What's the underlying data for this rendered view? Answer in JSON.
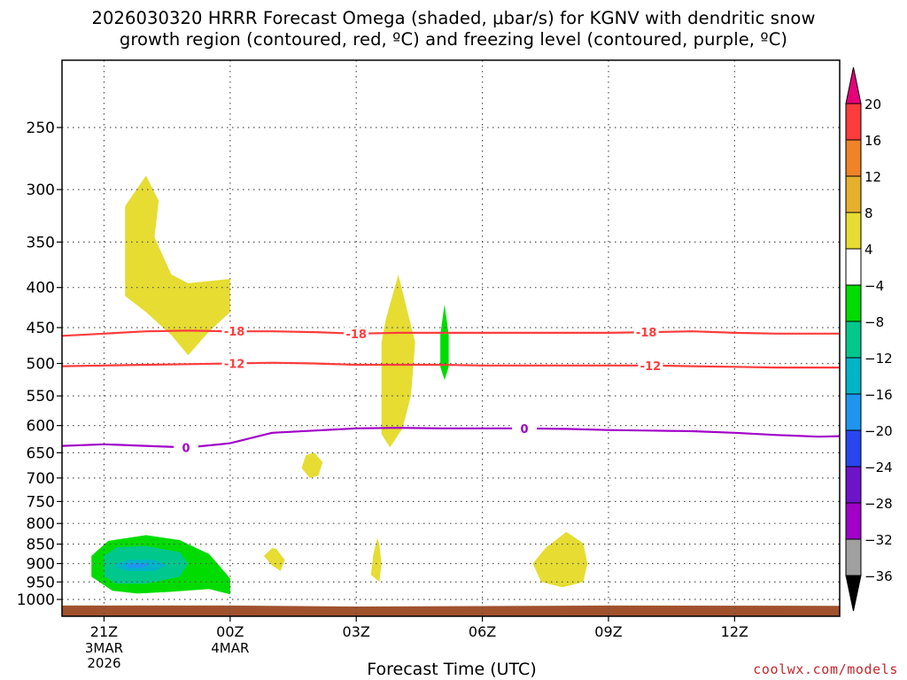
{
  "title": {
    "line1": "2026030320 HRRR Forecast Omega (shaded, μbar/s) for KGNV with dendritic snow",
    "line2": "growth region (contoured, red, ºC) and freezing level (contoured, purple, ºC)"
  },
  "credit": "coolwx.com/models",
  "chart_data": {
    "type": "heatmap",
    "xlabel": "Forecast Time (UTC)",
    "x_ticks": [
      {
        "label": "21Z",
        "sub": [
          "3MAR",
          "2026"
        ],
        "hours": 0
      },
      {
        "label": "00Z",
        "sub": [
          "4MAR"
        ],
        "hours": 3
      },
      {
        "label": "03Z",
        "sub": [],
        "hours": 6
      },
      {
        "label": "06Z",
        "sub": [],
        "hours": 9
      },
      {
        "label": "09Z",
        "sub": [],
        "hours": 12
      },
      {
        "label": "12Z",
        "sub": [],
        "hours": 15
      }
    ],
    "xlim_hours": [
      -1,
      17.5
    ],
    "y_ticks": [
      250,
      300,
      350,
      400,
      450,
      500,
      550,
      600,
      650,
      700,
      750,
      800,
      850,
      900,
      950,
      1000
    ],
    "y_scale": "log",
    "ylim_hpa": [
      200,
      1035
    ],
    "grid": true,
    "colorbar": {
      "labels": [
        "20",
        "16",
        "12",
        "8",
        "4",
        "−4",
        "−8",
        "−12",
        "−16",
        "−20",
        "−24",
        "−28",
        "−32",
        "−36"
      ],
      "segments": [
        {
          "from": 16,
          "to": 20,
          "color": "#ff3c3c"
        },
        {
          "from": 12,
          "to": 16,
          "color": "#f08228"
        },
        {
          "from": 8,
          "to": 12,
          "color": "#e6af2d"
        },
        {
          "from": 4,
          "to": 8,
          "color": "#e6dc32"
        },
        {
          "from": -4,
          "to": 4,
          "color": "#ffffff"
        },
        {
          "from": -8,
          "to": -4,
          "color": "#00dc00"
        },
        {
          "from": -12,
          "to": -8,
          "color": "#00c88c"
        },
        {
          "from": -16,
          "to": -12,
          "color": "#00b4c8"
        },
        {
          "from": -20,
          "to": -16,
          "color": "#1e96f0"
        },
        {
          "from": -24,
          "to": -20,
          "color": "#2846f0"
        },
        {
          "from": -28,
          "to": -24,
          "color": "#6e14c8"
        },
        {
          "from": -32,
          "to": -28,
          "color": "#a000c8"
        },
        {
          "from": -36,
          "to": -32,
          "color": "#a0a0a0"
        }
      ],
      "overflow_high": "#e6007a",
      "overflow_low": "#000000"
    },
    "contours": [
      {
        "name": "-18",
        "color": "#ff3c3c",
        "labels_at_hours": [
          3.1,
          6.0,
          12.9
        ],
        "points": [
          [
            -1,
            461
          ],
          [
            0,
            458
          ],
          [
            1,
            455
          ],
          [
            2,
            454
          ],
          [
            3,
            455
          ],
          [
            4,
            455
          ],
          [
            5,
            456
          ],
          [
            6,
            458
          ],
          [
            7,
            457
          ],
          [
            8,
            457
          ],
          [
            9,
            457
          ],
          [
            10,
            457
          ],
          [
            11,
            457
          ],
          [
            12,
            457
          ],
          [
            13,
            456
          ],
          [
            14,
            455
          ],
          [
            15,
            457
          ],
          [
            16,
            458
          ],
          [
            17.5,
            458
          ]
        ]
      },
      {
        "name": "-12",
        "color": "#ff3c3c",
        "labels_at_hours": [
          3.1,
          13.0
        ],
        "points": [
          [
            -1,
            504
          ],
          [
            0,
            503
          ],
          [
            1,
            502
          ],
          [
            2,
            501
          ],
          [
            3,
            500
          ],
          [
            4,
            499
          ],
          [
            5,
            500
          ],
          [
            6,
            502
          ],
          [
            7,
            502
          ],
          [
            8,
            502
          ],
          [
            9,
            503
          ],
          [
            10,
            503
          ],
          [
            11,
            503
          ],
          [
            12,
            503
          ],
          [
            13,
            503
          ],
          [
            14,
            504
          ],
          [
            15,
            505
          ],
          [
            16,
            506
          ],
          [
            17.5,
            506
          ]
        ]
      },
      {
        "name": "0",
        "color": "#a000c8",
        "labels_at_hours": [
          1.95,
          10.0
        ],
        "points": [
          [
            -1,
            637
          ],
          [
            0,
            634
          ],
          [
            1,
            637
          ],
          [
            2,
            640
          ],
          [
            3,
            632
          ],
          [
            4,
            613
          ],
          [
            5,
            609
          ],
          [
            6,
            605
          ],
          [
            7,
            604
          ],
          [
            8,
            605
          ],
          [
            9,
            605
          ],
          [
            10,
            605
          ],
          [
            11,
            606
          ],
          [
            12,
            608
          ],
          [
            13,
            609
          ],
          [
            14,
            610
          ],
          [
            15,
            613
          ],
          [
            16,
            617
          ],
          [
            17,
            620
          ],
          [
            17.5,
            619
          ]
        ]
      }
    ],
    "shaded_regions": [
      {
        "value": 4,
        "color": "#e6dc32",
        "points": [
          [
            0.5,
            315
          ],
          [
            1,
            288
          ],
          [
            1.3,
            310
          ],
          [
            1.2,
            345
          ],
          [
            1.6,
            385
          ],
          [
            2.0,
            395
          ],
          [
            3.0,
            390
          ],
          [
            3.0,
            430
          ],
          [
            2.5,
            455
          ],
          [
            2.0,
            488
          ],
          [
            1.6,
            460
          ],
          [
            1.0,
            430
          ],
          [
            0.5,
            410
          ]
        ]
      },
      {
        "value": 4,
        "color": "#e6dc32",
        "points": [
          [
            7.0,
            385
          ],
          [
            7.4,
            470
          ],
          [
            7.3,
            550
          ],
          [
            7.1,
            605
          ],
          [
            6.8,
            640
          ],
          [
            6.6,
            615
          ],
          [
            6.6,
            540
          ],
          [
            6.6,
            470
          ],
          [
            6.7,
            440
          ]
        ]
      },
      {
        "value": 4,
        "color": "#e6dc32",
        "points": [
          [
            5.0,
            650
          ],
          [
            5.2,
            668
          ],
          [
            5.1,
            695
          ],
          [
            4.9,
            700
          ],
          [
            4.7,
            680
          ],
          [
            4.8,
            655
          ]
        ]
      },
      {
        "value": 4,
        "color": "#e6dc32",
        "points": [
          [
            4.0,
            860
          ],
          [
            3.8,
            880
          ],
          [
            4.0,
            905
          ],
          [
            4.2,
            920
          ],
          [
            4.3,
            890
          ],
          [
            4.1,
            862
          ]
        ]
      },
      {
        "value": 4,
        "color": "#e6dc32",
        "points": [
          [
            6.5,
            835
          ],
          [
            6.4,
            880
          ],
          [
            6.35,
            930
          ],
          [
            6.55,
            950
          ],
          [
            6.6,
            900
          ],
          [
            6.55,
            850
          ]
        ]
      },
      {
        "value": 4,
        "color": "#e6dc32",
        "points": [
          [
            11.0,
            820
          ],
          [
            11.4,
            848
          ],
          [
            11.5,
            900
          ],
          [
            11.4,
            950
          ],
          [
            10.9,
            965
          ],
          [
            10.4,
            950
          ],
          [
            10.2,
            900
          ],
          [
            10.5,
            860
          ]
        ]
      },
      {
        "value": -4,
        "color": "#00dc00",
        "points": [
          [
            8.1,
            420
          ],
          [
            8.2,
            460
          ],
          [
            8.2,
            505
          ],
          [
            8.1,
            525
          ],
          [
            8.0,
            505
          ],
          [
            8.0,
            460
          ]
        ]
      },
      {
        "value": -4,
        "color": "#00dc00",
        "points": [
          [
            -0.3,
            880
          ],
          [
            0.1,
            842
          ],
          [
            1,
            828
          ],
          [
            1.8,
            840
          ],
          [
            2.5,
            875
          ],
          [
            3.0,
            940
          ],
          [
            3.0,
            985
          ],
          [
            2.5,
            970
          ],
          [
            1.6,
            978
          ],
          [
            0.8,
            983
          ],
          [
            0.2,
            975
          ],
          [
            -0.3,
            935
          ]
        ]
      },
      {
        "value": -8,
        "color": "#00c88c",
        "points": [
          [
            0.0,
            880
          ],
          [
            0.3,
            858
          ],
          [
            1.0,
            855
          ],
          [
            1.8,
            870
          ],
          [
            2.0,
            900
          ],
          [
            1.8,
            935
          ],
          [
            1.0,
            955
          ],
          [
            0.3,
            955
          ],
          [
            0.0,
            935
          ]
        ]
      },
      {
        "value": -12,
        "color": "#00b4c8",
        "points": [
          [
            0.3,
            900
          ],
          [
            0.6,
            890
          ],
          [
            1.2,
            890
          ],
          [
            1.5,
            905
          ],
          [
            1.2,
            920
          ],
          [
            0.6,
            920
          ],
          [
            0.3,
            912
          ]
        ]
      },
      {
        "value": -16,
        "color": "#1e96f0",
        "points": [
          [
            0.5,
            902
          ],
          [
            0.8,
            898
          ],
          [
            1.1,
            902
          ],
          [
            0.9,
            912
          ],
          [
            0.6,
            912
          ]
        ]
      }
    ],
    "terrain": {
      "color": "#a0522d",
      "points": [
        [
          -1,
          1018
        ],
        [
          3.0,
          1018
        ],
        [
          6.0,
          1021
        ],
        [
          12.0,
          1018
        ],
        [
          17.5,
          1019
        ]
      ]
    }
  }
}
